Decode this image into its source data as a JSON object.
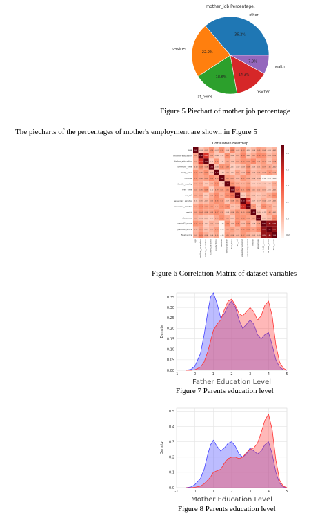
{
  "pie": {
    "title": "mother_job Percentage.",
    "labels": [
      "other",
      "services",
      "at_home",
      "teacher",
      "health"
    ],
    "colors": [
      "#1f77b4",
      "#ff7f0e",
      "#2ca02c",
      "#d62728",
      "#9467bd"
    ]
  },
  "captions": {
    "fig5": "Figure 5 Piechart of mother job percentage",
    "fig6": "Figure 6 Correlation Matrix of dataset variables",
    "fig7": "Figure 7 Parents education level",
    "fig8": "Figure 8 Parents education level"
  },
  "paragraph": "The piecharts of the percentages of mother's employment are shown in Figure 5",
  "heatmap": {
    "title": "Correlation Heatmap",
    "variables": [
      "age",
      "mother_education",
      "father_education",
      "commute_time",
      "study_time",
      "failures",
      "family_quality",
      "free_time",
      "go_out",
      "weekday_alcohol",
      "weekend_alcohol",
      "health",
      "absences",
      "period1_score",
      "period2_score",
      "final_score"
    ],
    "colorbar_ticks": [
      "0.8",
      "0.6",
      "0.4",
      "0.2",
      "0.0",
      "-0.2"
    ]
  },
  "chart_data": [
    {
      "type": "pie",
      "title": "mother_job Percentage.",
      "categories": [
        "other",
        "services",
        "at_home",
        "teacher",
        "health"
      ],
      "values": [
        36.2,
        22.9,
        18.6,
        14.3,
        7.9
      ],
      "value_labels": [
        "36.2%",
        "22.9%",
        "18.6%",
        "14.3%",
        "7.9%"
      ]
    },
    {
      "type": "area",
      "xlabel": "Father Education Level",
      "ylabel": "Density",
      "xlim": [
        -1,
        5
      ],
      "ylim": [
        0,
        0.37
      ],
      "xticks": [
        "-1",
        "0",
        "1",
        "2",
        "3",
        "4",
        "5"
      ],
      "yticks": [
        "0.00",
        "0.05",
        "0.10",
        "0.15",
        "0.20",
        "0.25",
        "0.30",
        "0.35"
      ],
      "x": [
        -0.5,
        -0.2,
        0.0,
        0.3,
        0.5,
        0.7,
        0.85,
        1.0,
        1.2,
        1.4,
        1.6,
        1.8,
        2.0,
        2.2,
        2.4,
        2.6,
        2.8,
        3.0,
        3.2,
        3.4,
        3.6,
        3.8,
        4.0,
        4.2,
        4.4,
        4.6,
        4.8,
        5.0
      ],
      "series": [
        {
          "color": "#4040ff",
          "values": [
            0.0,
            0.005,
            0.02,
            0.08,
            0.17,
            0.28,
            0.35,
            0.37,
            0.32,
            0.25,
            0.27,
            0.31,
            0.33,
            0.3,
            0.24,
            0.2,
            0.22,
            0.24,
            0.22,
            0.17,
            0.15,
            0.17,
            0.18,
            0.12,
            0.05,
            0.015,
            0.003,
            0.0
          ]
        },
        {
          "color": "#ff3333",
          "values": [
            0.0,
            0.0,
            0.003,
            0.015,
            0.04,
            0.09,
            0.14,
            0.19,
            0.22,
            0.24,
            0.29,
            0.33,
            0.34,
            0.31,
            0.27,
            0.26,
            0.28,
            0.3,
            0.28,
            0.24,
            0.26,
            0.31,
            0.33,
            0.26,
            0.12,
            0.04,
            0.01,
            0.0
          ]
        }
      ]
    },
    {
      "type": "area",
      "xlabel": "Mother Education Level",
      "ylabel": "Density",
      "xlim": [
        -1,
        5
      ],
      "ylim": [
        0,
        0.52
      ],
      "xticks": [
        "-1",
        "0",
        "1",
        "2",
        "3",
        "4",
        "5"
      ],
      "yticks": [
        "0.0",
        "0.1",
        "0.2",
        "0.3",
        "0.4",
        "0.5"
      ],
      "x": [
        -0.5,
        -0.2,
        0.0,
        0.3,
        0.5,
        0.7,
        0.85,
        1.0,
        1.2,
        1.4,
        1.6,
        1.8,
        2.0,
        2.2,
        2.4,
        2.6,
        2.8,
        3.0,
        3.2,
        3.4,
        3.6,
        3.8,
        4.0,
        4.2,
        4.4,
        4.6,
        4.8,
        5.0
      ],
      "series": [
        {
          "color": "#4040ff",
          "values": [
            0.0,
            0.005,
            0.02,
            0.06,
            0.12,
            0.22,
            0.28,
            0.31,
            0.27,
            0.24,
            0.26,
            0.29,
            0.3,
            0.27,
            0.22,
            0.2,
            0.22,
            0.26,
            0.24,
            0.22,
            0.24,
            0.28,
            0.3,
            0.22,
            0.1,
            0.03,
            0.005,
            0.0
          ]
        },
        {
          "color": "#ff3333",
          "values": [
            0.0,
            0.0,
            0.003,
            0.01,
            0.025,
            0.05,
            0.07,
            0.1,
            0.11,
            0.12,
            0.16,
            0.19,
            0.2,
            0.2,
            0.19,
            0.2,
            0.23,
            0.25,
            0.26,
            0.29,
            0.36,
            0.44,
            0.48,
            0.38,
            0.18,
            0.05,
            0.01,
            0.0
          ]
        }
      ]
    }
  ]
}
